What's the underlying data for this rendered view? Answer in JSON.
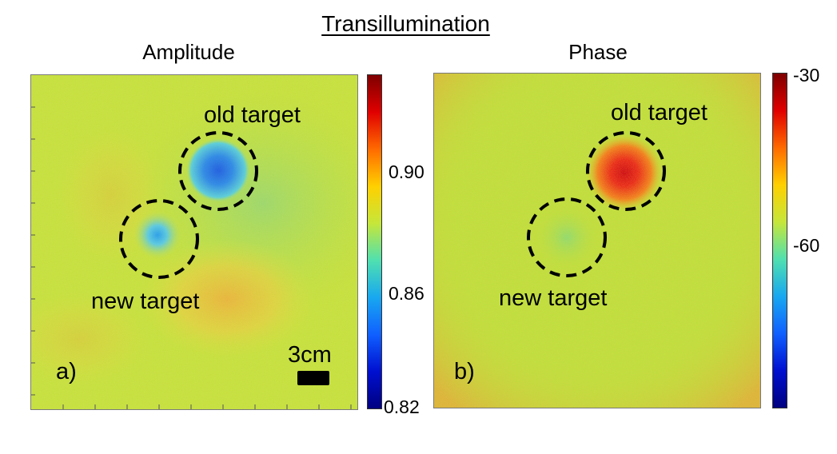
{
  "figure": {
    "title": "Transillumination"
  },
  "panels": [
    {
      "id": "a",
      "subtitle": "Amplitude",
      "panel_label": "a)",
      "scale_bar_label": "3cm",
      "targets": [
        {
          "label": "old target"
        },
        {
          "label": "new target"
        }
      ],
      "colorbar": {
        "ticks": [
          "0.90",
          "0.86",
          "0.82"
        ],
        "range": [
          0.82,
          0.935
        ]
      },
      "colors": {
        "background": "#c6e23a",
        "old_target_core": "#2f86e6",
        "new_target_core": "#35b9ec",
        "warm_region": "#e9c63a"
      }
    },
    {
      "id": "b",
      "subtitle": "Phase",
      "panel_label": "b)",
      "targets": [
        {
          "label": "old target"
        },
        {
          "label": "new target"
        }
      ],
      "colorbar": {
        "ticks": [
          "-30",
          "-60"
        ],
        "range": [
          -90,
          -30
        ]
      },
      "colors": {
        "background": "#c0e03c",
        "old_target_core": "#d8121a",
        "new_target_core": "#8fe070",
        "noise_edge": "#e3a63c"
      }
    }
  ],
  "colormap": "jet",
  "colormap_stops": [
    "#7f0000",
    "#e00000",
    "#ff6a00",
    "#ffd000",
    "#c6e63a",
    "#50e0b0",
    "#18a8f0",
    "#1060ff",
    "#0010d0",
    "#000080"
  ]
}
